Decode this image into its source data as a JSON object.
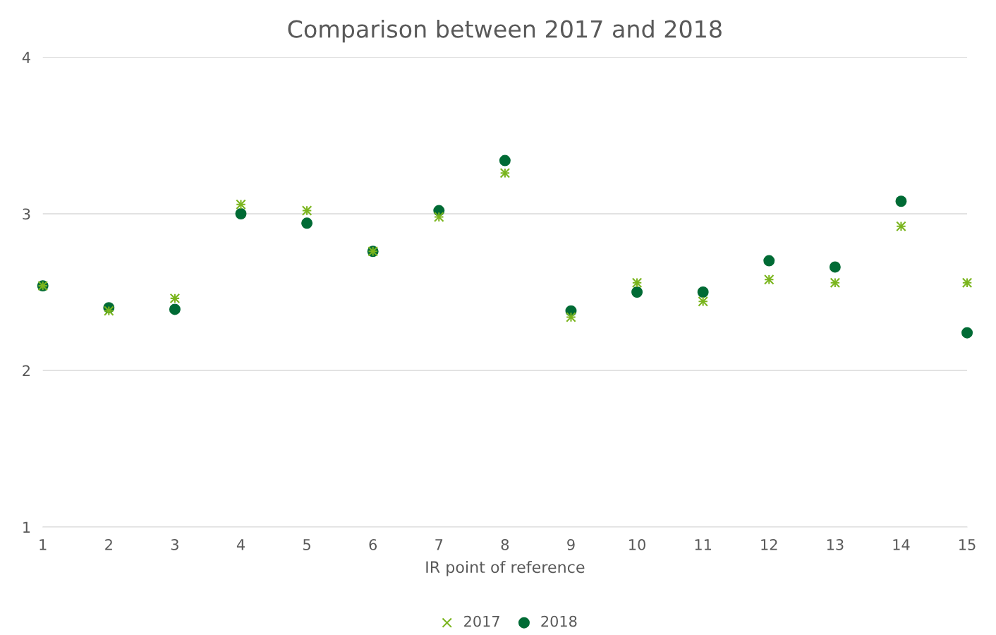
{
  "chart_data": {
    "type": "scatter",
    "title": "Comparison between 2017 and 2018",
    "xlabel": "IR point of reference",
    "x": [
      1,
      2,
      3,
      4,
      5,
      6,
      7,
      8,
      9,
      10,
      11,
      12,
      13,
      14,
      15
    ],
    "series": [
      {
        "name": "2017",
        "color": "#7ab51d",
        "marker": "cross",
        "values": [
          2.54,
          2.38,
          2.46,
          3.06,
          3.02,
          2.76,
          2.98,
          3.26,
          2.34,
          2.56,
          2.44,
          2.58,
          2.56,
          2.92,
          2.56
        ]
      },
      {
        "name": "2018",
        "color": "#006b35",
        "marker": "circle",
        "values": [
          2.54,
          2.4,
          2.39,
          3.0,
          2.94,
          2.76,
          3.02,
          3.34,
          2.38,
          2.5,
          2.5,
          2.7,
          2.66,
          3.08,
          2.24
        ]
      }
    ],
    "xlim": [
      1,
      15
    ],
    "xticks": [
      1,
      2,
      3,
      4,
      5,
      6,
      7,
      8,
      9,
      10,
      11,
      12,
      13,
      14,
      15
    ],
    "ylim": [
      1,
      4
    ],
    "yticks": [
      1,
      2,
      3,
      4
    ],
    "grid": "y",
    "legend": "bottom"
  }
}
